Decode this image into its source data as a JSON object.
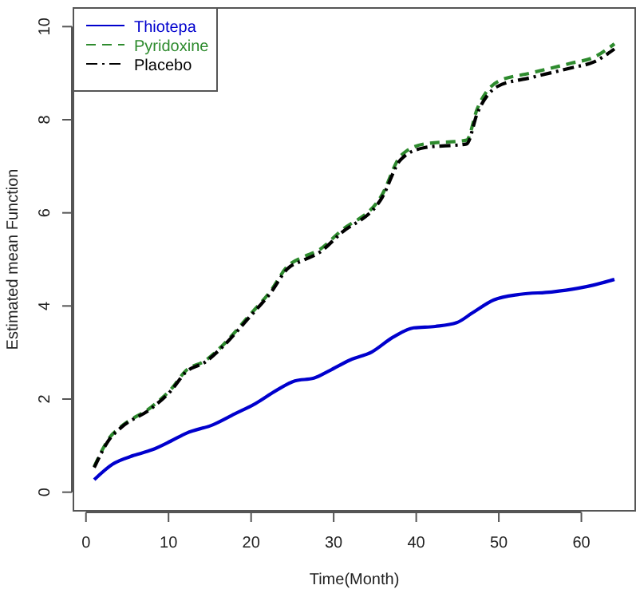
{
  "chart_data": {
    "type": "line",
    "xlabel": "Time(Month)",
    "ylabel": "Estimated mean Function",
    "xlim": [
      -1.52,
      66.52
    ],
    "ylim": [
      -0.4,
      10.4
    ],
    "xticks": [
      0,
      10,
      20,
      30,
      40,
      50,
      60
    ],
    "yticks": [
      0,
      2,
      4,
      6,
      8,
      10
    ],
    "grid": false,
    "legend": "top left",
    "marker": "none",
    "series": [
      {
        "name": "Thiotepa",
        "color": "#0000cd",
        "line_style": "solid",
        "x": [
          1,
          3.2,
          5.8,
          8,
          10.3,
          12.2,
          15.4,
          18,
          20.5,
          23.1,
          25.3,
          27.6,
          29.5,
          32,
          34.6,
          37.2,
          39.7,
          42.3,
          44.9,
          46.8,
          49.4,
          52.6,
          56.4,
          59.6,
          61.5,
          64
        ],
        "values": [
          0.27,
          0.6,
          0.79,
          0.91,
          1.1,
          1.27,
          1.45,
          1.68,
          1.9,
          2.19,
          2.39,
          2.45,
          2.61,
          2.84,
          3.01,
          3.33,
          3.53,
          3.56,
          3.64,
          3.85,
          4.13,
          4.25,
          4.3,
          4.38,
          4.45,
          4.57
        ]
      },
      {
        "name": "Pyridoxine",
        "color": "#2e8b2e",
        "line_style": "dashed",
        "x": [
          1,
          2.9,
          4.2,
          8,
          10.3,
          12.1,
          14.4,
          16.7,
          19.6,
          22.4,
          24.4,
          26.3,
          28.2,
          30.8,
          35.9,
          38.1,
          41,
          46.1,
          47.4,
          49.9,
          53.8,
          58.9,
          61.5,
          64
        ],
        "values": [
          0.55,
          1.18,
          1.4,
          1.84,
          2.21,
          2.61,
          2.82,
          3.18,
          3.76,
          4.33,
          4.85,
          5.05,
          5.2,
          5.6,
          6.4,
          7.22,
          7.48,
          7.56,
          8.24,
          8.82,
          9.0,
          9.22,
          9.34,
          9.63
        ]
      },
      {
        "name": "Placebo",
        "color": "#000000",
        "line_style": "dashdot",
        "x": [
          1,
          2.9,
          4.2,
          8,
          10.3,
          12.1,
          14.4,
          16.7,
          19.6,
          22.4,
          24.4,
          26.3,
          28.2,
          30.8,
          35.9,
          38.1,
          41,
          46.1,
          47.4,
          49.9,
          53.8,
          58.9,
          61.5,
          64
        ],
        "values": [
          0.53,
          1.15,
          1.38,
          1.81,
          2.18,
          2.58,
          2.79,
          3.15,
          3.72,
          4.29,
          4.8,
          4.98,
          5.14,
          5.55,
          6.34,
          7.14,
          7.4,
          7.48,
          8.14,
          8.72,
          8.9,
          9.12,
          9.24,
          9.52
        ]
      }
    ]
  }
}
